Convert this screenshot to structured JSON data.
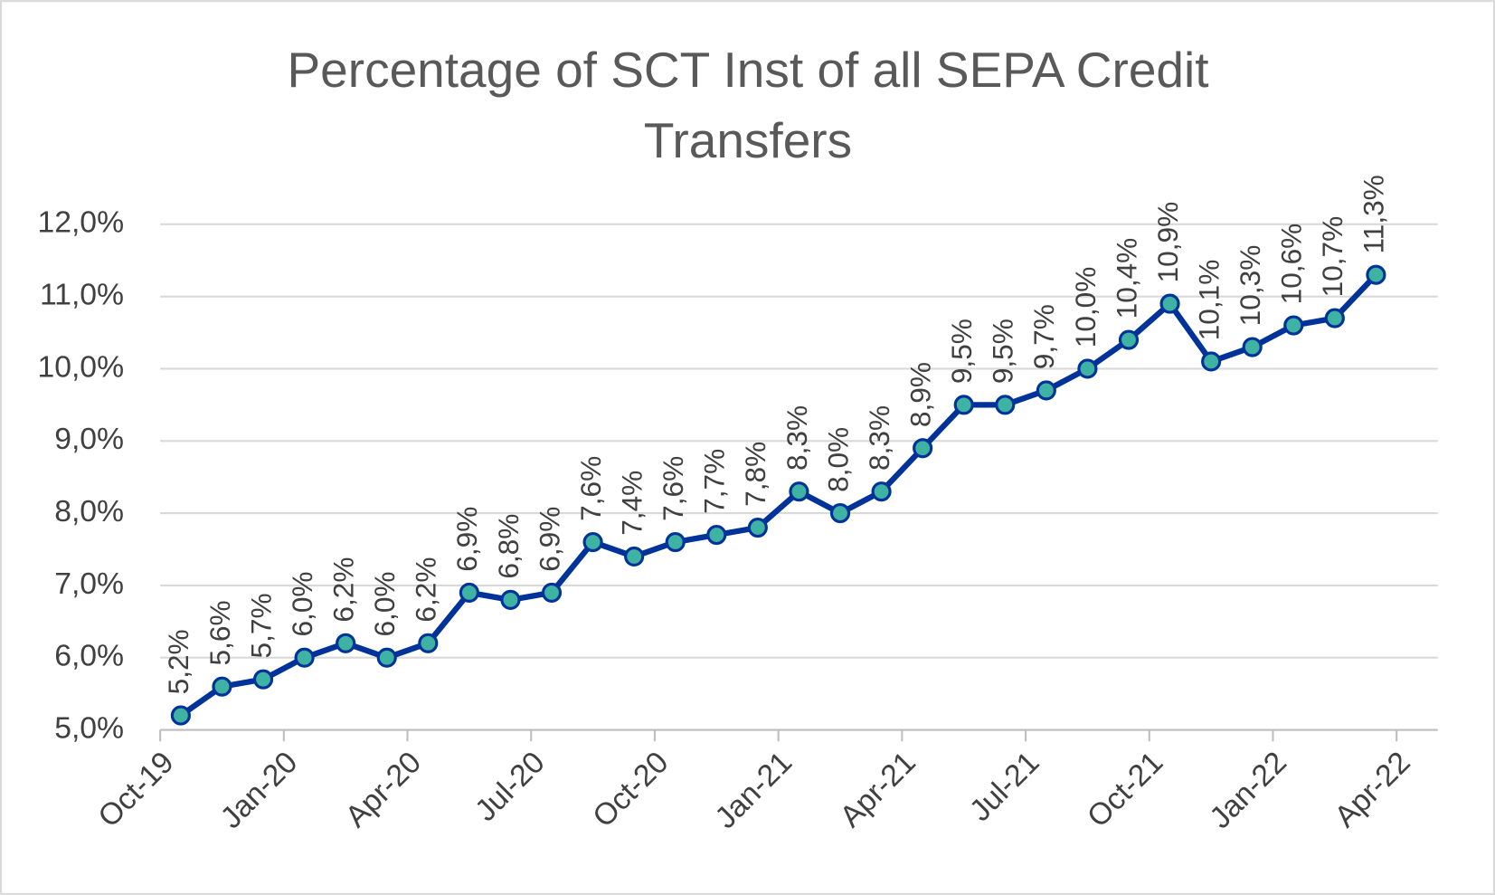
{
  "chart_data": {
    "type": "line",
    "title": "Percentage of SCT Inst of all SEPA Credit Transfers",
    "x": [
      "2019-10",
      "2019-11",
      "2019-12",
      "2020-01",
      "2020-02",
      "2020-03",
      "2020-04",
      "2020-05",
      "2020-06",
      "2020-07",
      "2020-08",
      "2020-09",
      "2020-10",
      "2020-11",
      "2020-12",
      "2021-01",
      "2021-02",
      "2021-03",
      "2021-04",
      "2021-05",
      "2021-06",
      "2021-07",
      "2021-08",
      "2021-09",
      "2021-10",
      "2021-11",
      "2021-12",
      "2022-01",
      "2022-02",
      "2022-03"
    ],
    "series": [
      {
        "color": "#003399",
        "marker_color": "#3fb3a3",
        "values": [
          5.2,
          5.6,
          5.7,
          6.0,
          6.2,
          6.0,
          6.2,
          6.9,
          6.8,
          6.9,
          7.6,
          7.4,
          7.6,
          7.7,
          7.8,
          8.3,
          8.0,
          8.3,
          8.9,
          9.5,
          9.5,
          9.7,
          10.0,
          10.4,
          10.9,
          10.1,
          10.3,
          10.6,
          10.7,
          11.3
        ],
        "value_labels": [
          "5,2%",
          "5,6%",
          "5,7%",
          "6,0%",
          "6,2%",
          "6,0%",
          "6,2%",
          "6,9%",
          "6,8%",
          "6,9%",
          "7,6%",
          "7,4%",
          "7,6%",
          "7,7%",
          "7,8%",
          "8,3%",
          "8,0%",
          "8,3%",
          "8,9%",
          "9,5%",
          "9,5%",
          "9,7%",
          "10,0%",
          "10,4%",
          "10,9%",
          "10,1%",
          "10,3%",
          "10,6%",
          "10,7%",
          "11,3%"
        ]
      }
    ],
    "xlim": [
      "2019-10",
      "2022-05"
    ],
    "xticks": [
      {
        "value": "2019-10",
        "label": "Oct-19"
      },
      {
        "value": "2020-01",
        "label": "Jan-20"
      },
      {
        "value": "2020-04",
        "label": "Apr-20"
      },
      {
        "value": "2020-07",
        "label": "Jul-20"
      },
      {
        "value": "2020-10",
        "label": "Oct-20"
      },
      {
        "value": "2021-01",
        "label": "Jan-21"
      },
      {
        "value": "2021-04",
        "label": "Apr-21"
      },
      {
        "value": "2021-07",
        "label": "Jul-21"
      },
      {
        "value": "2021-10",
        "label": "Oct-21"
      },
      {
        "value": "2022-01",
        "label": "Jan-22"
      },
      {
        "value": "2022-04",
        "label": "Apr-22"
      }
    ],
    "ylim": [
      5,
      12
    ],
    "yticks": [
      {
        "value": 5,
        "label": "5,0%"
      },
      {
        "value": 6,
        "label": "6,0%"
      },
      {
        "value": 7,
        "label": "7,0%"
      },
      {
        "value": 8,
        "label": "8,0%"
      },
      {
        "value": 9,
        "label": "9,0%"
      },
      {
        "value": 10,
        "label": "10,0%"
      },
      {
        "value": 11,
        "label": "11,0%"
      },
      {
        "value": 12,
        "label": "12,0%"
      }
    ],
    "grid": true
  }
}
